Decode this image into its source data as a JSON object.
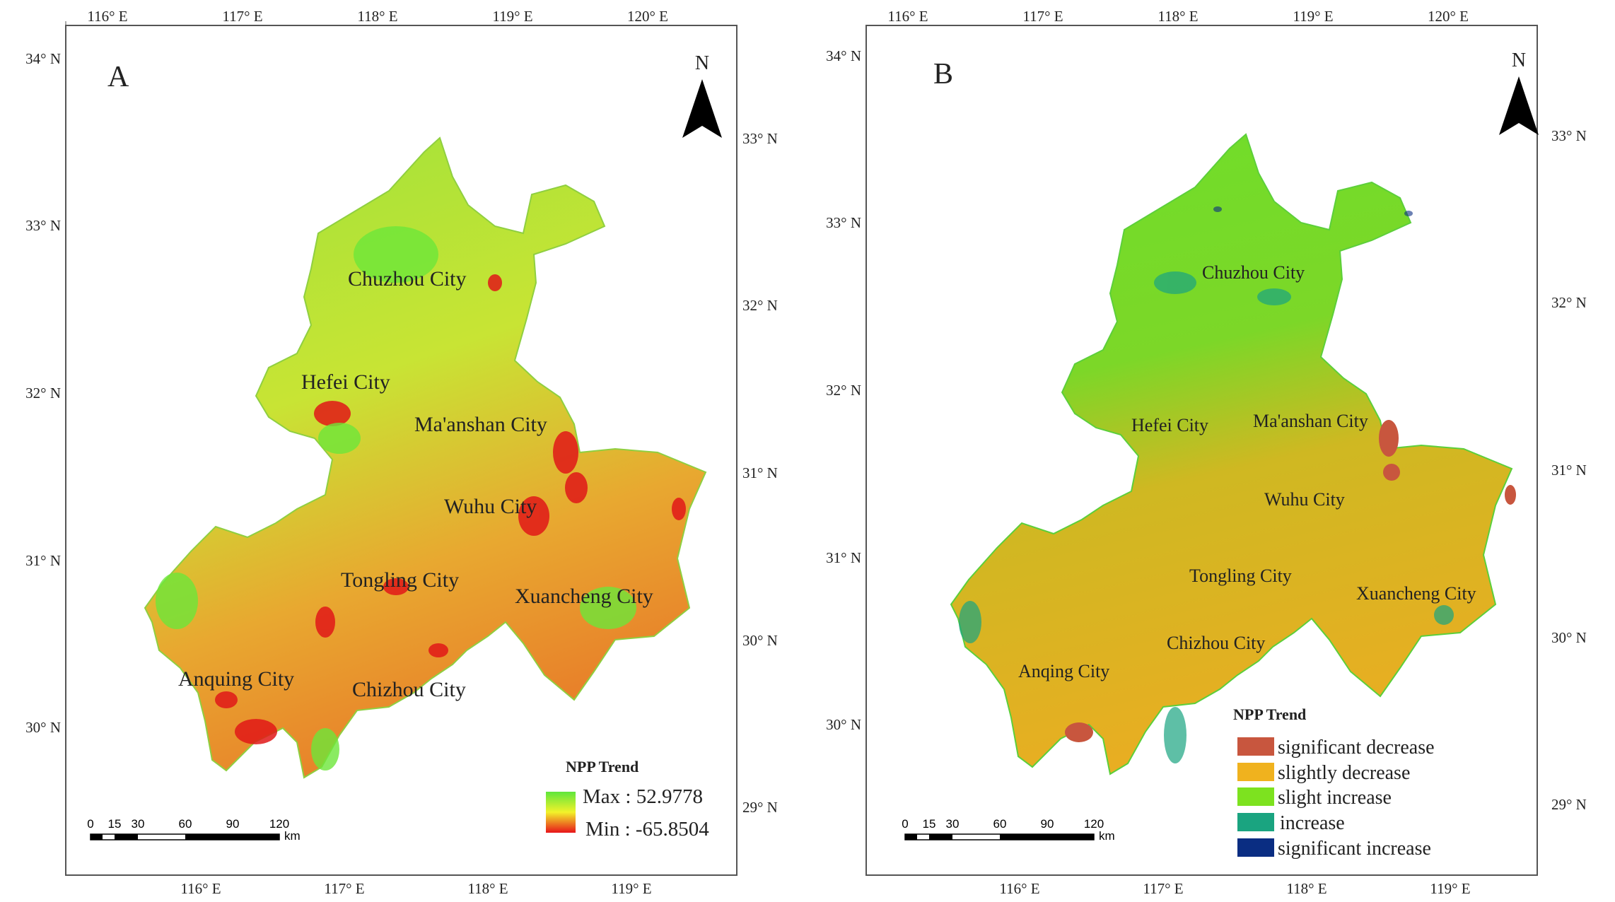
{
  "panels": [
    {
      "letter": "A",
      "north": "N",
      "top_ticks": [
        "116° E",
        "117° E",
        "118° E",
        "119° E",
        "120° E"
      ],
      "bottom_ticks": [
        "116° E",
        "117° E",
        "118° E",
        "119° E"
      ],
      "left_ticks": [
        "34° N",
        "33° N",
        "32° N",
        "31° N",
        "30° N"
      ],
      "right_ticks": [
        "33° N",
        "32° N",
        "31° N",
        "30° N",
        "29° N"
      ],
      "cities": [
        "Chuzhou City",
        "Hefei City",
        "Ma'anshan City",
        "Wuhu City",
        "Tongling City",
        "Xuancheng City",
        "Anquing City",
        "Chizhou City"
      ],
      "legend": {
        "title": "NPP Trend",
        "max_label": "Max : 52.9778",
        "min_label": "Min : -65.8504",
        "max_color": "#5ee63c",
        "mid_color": "#f2f22a",
        "min_color": "#e8141a"
      },
      "scale": {
        "ticks": [
          "0",
          "15",
          "30",
          "60",
          "90",
          "120"
        ],
        "unit": "km"
      }
    },
    {
      "letter": "B",
      "north": "N",
      "top_ticks": [
        "116° E",
        "117° E",
        "118° E",
        "119° E",
        "120° E"
      ],
      "bottom_ticks": [
        "116° E",
        "117° E",
        "118° E",
        "119° E"
      ],
      "left_ticks": [
        "34° N",
        "33° N",
        "32° N",
        "31° N",
        "30° N"
      ],
      "right_ticks": [
        "33° N",
        "32° N",
        "31° N",
        "30° N",
        "29° N"
      ],
      "cities": [
        "Chuzhou City",
        "Hefei City",
        "Ma'anshan City",
        "Wuhu City",
        "Tongling City",
        "Xuancheng City",
        "Chizhou City",
        "Anqing City"
      ],
      "legend": {
        "title": "NPP Trend",
        "items": [
          {
            "label": "significant decrease",
            "color": "#c8563e"
          },
          {
            "label": "slightly decrease",
            "color": "#f0b21e"
          },
          {
            "label": "slight increase",
            "color": "#7de21f"
          },
          {
            "label": "increase",
            "color": "#1aa480"
          },
          {
            "label": "significant increase",
            "color": "#0a2d82"
          }
        ]
      },
      "scale": {
        "ticks": [
          "0",
          "15",
          "30",
          "60",
          "90",
          "120"
        ],
        "unit": "km"
      }
    }
  ]
}
